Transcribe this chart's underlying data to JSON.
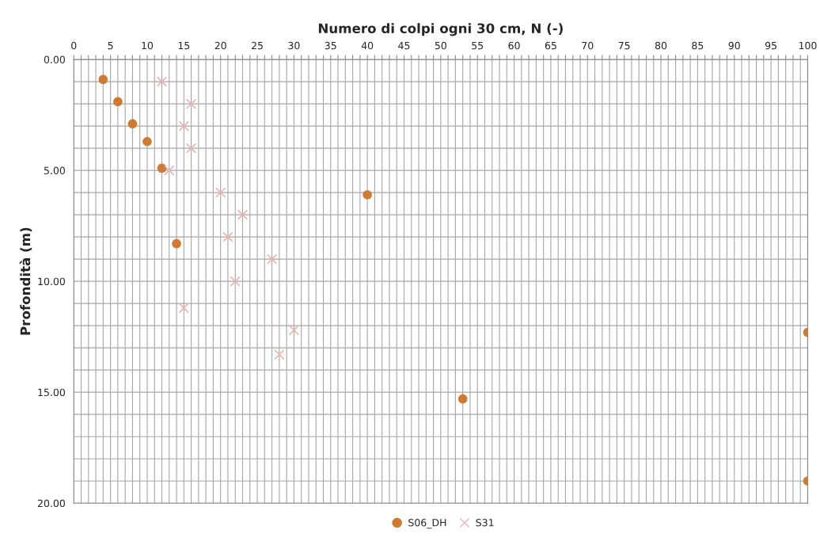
{
  "chart_data": {
    "type": "scatter",
    "title": "Numero di colpi ogni 30 cm, N (-)",
    "ylabel": "Profondità (m)",
    "xlim": [
      0,
      100
    ],
    "xticks": [
      0,
      {
        "value": 1,
        "label": null
      },
      {
        "value": 2,
        "label": null
      },
      {
        "value": 3,
        "label": null
      },
      {
        "value": 4,
        "label": null
      },
      5,
      {
        "value": 6,
        "label": null
      },
      {
        "value": 7,
        "label": null
      },
      {
        "value": 8,
        "label": null
      },
      {
        "value": 9,
        "label": null
      },
      10,
      {
        "value": 11,
        "label": null
      },
      {
        "value": 12,
        "label": null
      },
      {
        "value": 13,
        "label": null
      },
      {
        "value": 14,
        "label": null
      },
      15,
      {
        "value": 16,
        "label": null
      },
      {
        "value": 17,
        "label": null
      },
      {
        "value": 18,
        "label": null
      },
      {
        "value": 19,
        "label": null
      },
      20,
      {
        "value": 21,
        "label": null
      },
      {
        "value": 22,
        "label": null
      },
      {
        "value": 23,
        "label": null
      },
      {
        "value": 24,
        "label": null
      },
      25,
      {
        "value": 26,
        "label": null
      },
      {
        "value": 27,
        "label": null
      },
      {
        "value": 28,
        "label": null
      },
      {
        "value": 29,
        "label": null
      },
      30,
      {
        "value": 31,
        "label": null
      },
      {
        "value": 32,
        "label": null
      },
      {
        "value": 33,
        "label": null
      },
      {
        "value": 34,
        "label": null
      },
      35,
      {
        "value": 36,
        "label": null
      },
      {
        "value": 37,
        "label": null
      },
      {
        "value": 38,
        "label": null
      },
      {
        "value": 39,
        "label": null
      },
      40,
      {
        "value": 41,
        "label": null
      },
      {
        "value": 42,
        "label": null
      },
      {
        "value": 43,
        "label": null
      },
      {
        "value": 44,
        "label": null
      },
      45,
      {
        "value": 46,
        "label": null
      },
      {
        "value": 47,
        "label": null
      },
      {
        "value": 48,
        "label": null
      },
      {
        "value": 49,
        "label": null
      },
      50,
      {
        "value": 51,
        "label": null
      },
      {
        "value": 52,
        "label": null
      },
      {
        "value": 53,
        "label": null
      },
      {
        "value": 54,
        "label": null
      },
      55,
      {
        "value": 56,
        "label": null
      },
      {
        "value": 57,
        "label": null
      },
      {
        "value": 58,
        "label": null
      },
      {
        "value": 59,
        "label": null
      },
      60,
      {
        "value": 61,
        "label": null
      },
      {
        "value": 62,
        "label": null
      },
      {
        "value": 63,
        "label": null
      },
      {
        "value": 64,
        "label": null
      },
      65,
      {
        "value": 66,
        "label": null
      },
      {
        "value": 67,
        "label": null
      },
      {
        "value": 68,
        "label": null
      },
      {
        "value": 69,
        "label": null
      },
      70,
      {
        "value": 71,
        "label": null
      },
      {
        "value": 72,
        "label": null
      },
      {
        "value": 73,
        "label": null
      },
      {
        "value": 74,
        "label": null
      },
      75,
      {
        "value": 76,
        "label": null
      },
      {
        "value": 77,
        "label": null
      },
      {
        "value": 78,
        "label": null
      },
      {
        "value": 79,
        "label": null
      },
      80,
      {
        "value": 81,
        "label": null
      },
      {
        "value": 82,
        "label": null
      },
      {
        "value": 83,
        "label": null
      },
      {
        "value": 84,
        "label": null
      },
      85,
      {
        "value": 86,
        "label": null
      },
      {
        "value": 87,
        "label": null
      },
      {
        "value": 88,
        "label": null
      },
      {
        "value": 89,
        "label": null
      },
      90,
      {
        "value": 91,
        "label": null
      },
      {
        "value": 92,
        "label": null
      },
      {
        "value": 93,
        "label": null
      },
      {
        "value": 94,
        "label": null
      },
      95,
      {
        "value": 96,
        "label": null
      },
      {
        "value": 97,
        "label": null
      },
      {
        "value": 98,
        "label": null
      },
      {
        "value": 99,
        "label": null
      },
      100
    ],
    "ylim": [
      20,
      0
    ],
    "yticks": [
      {
        "value": 0,
        "label": "0.00"
      },
      {
        "value": 1,
        "label": null
      },
      {
        "value": 2,
        "label": null
      },
      {
        "value": 3,
        "label": null
      },
      {
        "value": 4,
        "label": null
      },
      {
        "value": 5,
        "label": "5.00"
      },
      {
        "value": 6,
        "label": null
      },
      {
        "value": 7,
        "label": null
      },
      {
        "value": 8,
        "label": null
      },
      {
        "value": 9,
        "label": null
      },
      {
        "value": 10,
        "label": "10.00"
      },
      {
        "value": 11,
        "label": null
      },
      {
        "value": 12,
        "label": null
      },
      {
        "value": 13,
        "label": null
      },
      {
        "value": 14,
        "label": null
      },
      {
        "value": 15,
        "label": "15.00"
      },
      {
        "value": 16,
        "label": null
      },
      {
        "value": 17,
        "label": null
      },
      {
        "value": 18,
        "label": null
      },
      {
        "value": 19,
        "label": null
      },
      {
        "value": 20,
        "label": "20.00"
      }
    ],
    "grid": true,
    "legend": "bottom",
    "series": [
      {
        "name": "S06_DH",
        "color": "#d07a30",
        "marker": "circle",
        "x": [
          4,
          6,
          8,
          10,
          12,
          40,
          14,
          100,
          53,
          100
        ],
        "values": [
          0.9,
          1.9,
          2.9,
          3.7,
          4.9,
          6.1,
          8.3,
          12.3,
          15.3,
          19.0
        ]
      },
      {
        "name": "S31",
        "color": "#e8b4b4",
        "marker": "cross",
        "x": [
          12,
          16,
          15,
          16,
          13,
          20,
          23,
          21,
          27,
          22,
          15,
          30,
          28
        ],
        "values": [
          1.0,
          2.0,
          3.0,
          4.0,
          5.0,
          6.0,
          7.0,
          8.0,
          9.0,
          10.0,
          11.2,
          12.2,
          13.3
        ]
      }
    ]
  }
}
